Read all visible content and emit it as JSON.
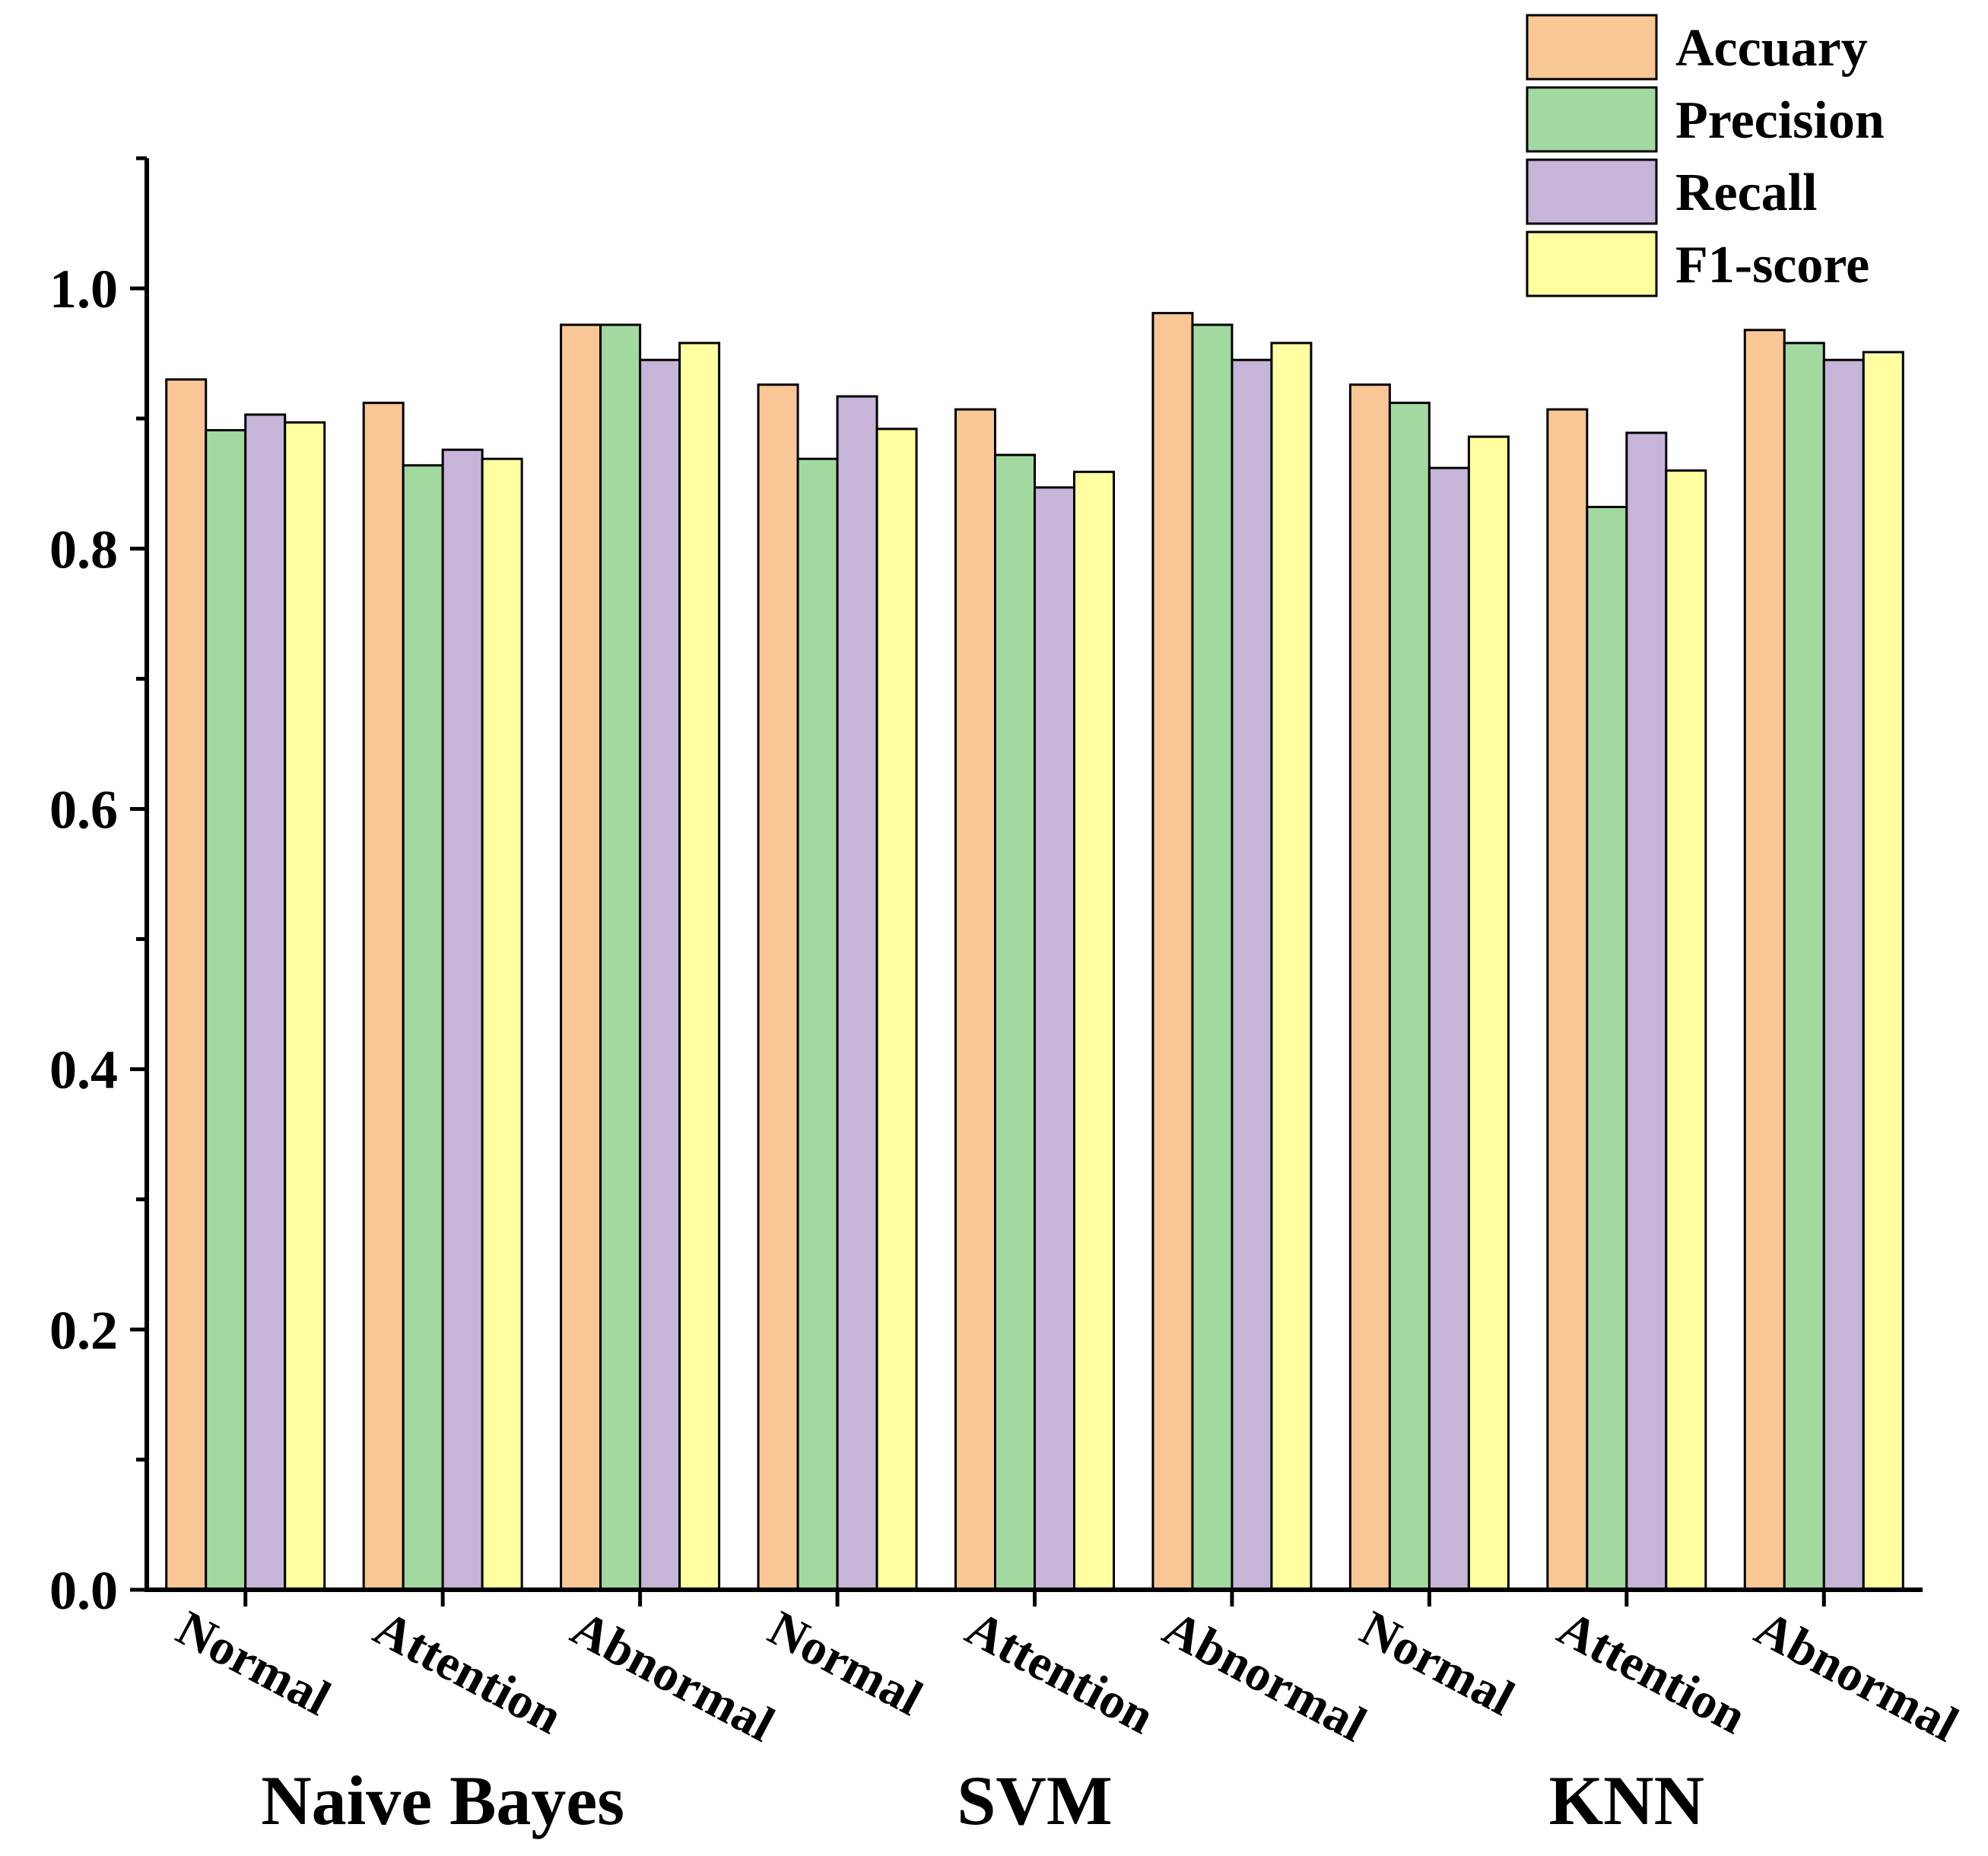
{
  "chart_data": {
    "type": "bar",
    "title": "",
    "xlabel": "",
    "ylabel": "",
    "ylim": [
      0,
      1.1
    ],
    "yticks": [
      "0.0",
      "0.2",
      "0.4",
      "0.6",
      "0.8",
      "1.0"
    ],
    "categories": [
      "Normal",
      "Attention",
      "Abnormal",
      "Normal",
      "Attention",
      "Abnormal",
      "Normal",
      "Attention",
      "Abnormal"
    ],
    "groups": [
      {
        "label": "Naive Bayes",
        "span": [
          0,
          2
        ]
      },
      {
        "label": "SVM",
        "span": [
          3,
          5
        ]
      },
      {
        "label": "KNN",
        "span": [
          6,
          8
        ]
      }
    ],
    "series": [
      {
        "name": "Accuary",
        "color": "#F9C796",
        "values": [
          0.93,
          0.912,
          0.972,
          0.926,
          0.907,
          0.981,
          0.926,
          0.907,
          0.968
        ]
      },
      {
        "name": "Precision",
        "color": "#A2D9A0",
        "values": [
          0.891,
          0.864,
          0.972,
          0.869,
          0.872,
          0.972,
          0.912,
          0.832,
          0.958
        ]
      },
      {
        "name": "Recall",
        "color": "#C6B4D9",
        "values": [
          0.903,
          0.876,
          0.945,
          0.917,
          0.847,
          0.945,
          0.862,
          0.889,
          0.945
        ]
      },
      {
        "name": "F1-score",
        "color": "#FFFFA0",
        "values": [
          0.897,
          0.869,
          0.958,
          0.892,
          0.859,
          0.958,
          0.886,
          0.86,
          0.951
        ]
      }
    ],
    "legend_position": "top-right",
    "grid": false
  }
}
